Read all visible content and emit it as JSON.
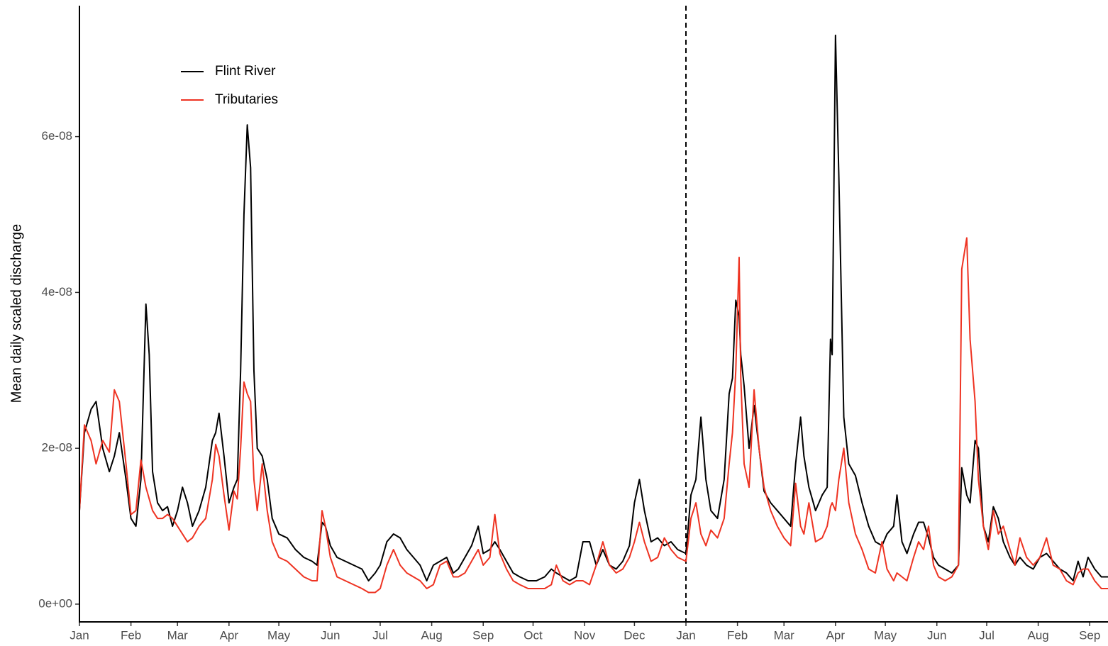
{
  "chart_data": {
    "type": "line",
    "y_label": "Mean daily scaled discharge",
    "legend": "top-left",
    "vline": 365,
    "xlim": [
      0,
      619
    ],
    "ylim": [
      -2.28e-09,
      7.68e-08
    ],
    "xticks": [
      {
        "value": 0,
        "label": "Jan"
      },
      {
        "value": 31,
        "label": "Feb"
      },
      {
        "value": 59,
        "label": "Mar"
      },
      {
        "value": 90,
        "label": "Apr"
      },
      {
        "value": 120,
        "label": "May"
      },
      {
        "value": 151,
        "label": "Jun"
      },
      {
        "value": 181,
        "label": "Jul"
      },
      {
        "value": 212,
        "label": "Aug"
      },
      {
        "value": 243,
        "label": "Sep"
      },
      {
        "value": 273,
        "label": "Oct"
      },
      {
        "value": 304,
        "label": "Nov"
      },
      {
        "value": 334,
        "label": "Dec"
      },
      {
        "value": 365,
        "label": "Jan"
      },
      {
        "value": 396,
        "label": "Feb"
      },
      {
        "value": 424,
        "label": "Mar"
      },
      {
        "value": 455,
        "label": "Apr"
      },
      {
        "value": 485,
        "label": "May"
      },
      {
        "value": 516,
        "label": "Jun"
      },
      {
        "value": 546,
        "label": "Jul"
      },
      {
        "value": 577,
        "label": "Aug"
      },
      {
        "value": 608,
        "label": "Sep"
      }
    ],
    "yticks": [
      {
        "value": 0,
        "label": "0e+00"
      },
      {
        "value": 2e-08,
        "label": "2e-08"
      },
      {
        "value": 4e-08,
        "label": "4e-08"
      },
      {
        "value": 6e-08,
        "label": "6e-08"
      }
    ],
    "x": [
      0,
      3,
      7,
      10,
      14,
      18,
      21,
      24,
      28,
      31,
      34,
      37,
      40,
      42,
      44,
      47,
      50,
      53,
      56,
      59,
      62,
      65,
      68,
      72,
      76,
      80,
      82,
      84,
      87,
      90,
      93,
      95,
      97,
      99,
      101,
      103,
      105,
      107,
      110,
      113,
      116,
      120,
      125,
      130,
      135,
      140,
      143,
      146,
      148,
      151,
      155,
      160,
      165,
      170,
      174,
      178,
      181,
      185,
      189,
      193,
      197,
      201,
      205,
      209,
      213,
      217,
      221,
      225,
      228,
      232,
      236,
      240,
      243,
      247,
      250,
      253,
      257,
      261,
      265,
      270,
      275,
      280,
      284,
      287,
      291,
      295,
      299,
      303,
      307,
      311,
      315,
      319,
      323,
      327,
      331,
      334,
      337,
      340,
      344,
      348,
      352,
      356,
      360,
      365,
      368,
      371,
      374,
      377,
      380,
      384,
      388,
      391,
      393,
      395,
      397,
      398,
      400,
      403,
      406,
      409,
      412,
      416,
      420,
      424,
      428,
      431,
      434,
      436,
      439,
      443,
      447,
      450,
      452,
      453,
      455,
      457,
      460,
      463,
      467,
      471,
      475,
      479,
      483,
      486,
      490,
      492,
      495,
      498,
      502,
      505,
      508,
      511,
      514,
      517,
      521,
      525,
      529,
      531,
      534,
      536,
      539,
      541,
      544,
      547,
      550,
      553,
      556,
      560,
      563,
      566,
      570,
      574,
      578,
      582,
      586,
      590,
      594,
      598,
      601,
      604,
      607,
      611,
      615,
      619
    ],
    "series": [
      {
        "name": "Flint River",
        "color": "#000000",
        "values": [
          1.2e-08,
          2.2e-08,
          2.5e-08,
          2.6e-08,
          2e-08,
          1.7e-08,
          1.9e-08,
          2.2e-08,
          1.6e-08,
          1.1e-08,
          1e-08,
          1.6e-08,
          3.85e-08,
          3.2e-08,
          1.7e-08,
          1.3e-08,
          1.2e-08,
          1.25e-08,
          1e-08,
          1.2e-08,
          1.5e-08,
          1.3e-08,
          1e-08,
          1.2e-08,
          1.5e-08,
          2.1e-08,
          2.2e-08,
          2.45e-08,
          1.9e-08,
          1.3e-08,
          1.5e-08,
          1.6e-08,
          3e-08,
          5e-08,
          6.15e-08,
          5.6e-08,
          3e-08,
          2e-08,
          1.9e-08,
          1.6e-08,
          1.1e-08,
          9e-09,
          8.5e-09,
          7e-09,
          6e-09,
          5.5e-09,
          5e-09,
          1.05e-08,
          1e-08,
          7.5e-09,
          6e-09,
          5.5e-09,
          5e-09,
          4.5e-09,
          3e-09,
          4e-09,
          5e-09,
          8e-09,
          9e-09,
          8.5e-09,
          7e-09,
          6e-09,
          5e-09,
          3e-09,
          5e-09,
          5.5e-09,
          6e-09,
          4e-09,
          4.5e-09,
          6e-09,
          7.5e-09,
          1e-08,
          6.5e-09,
          7e-09,
          8e-09,
          7e-09,
          5.5e-09,
          4e-09,
          3.5e-09,
          3e-09,
          3e-09,
          3.5e-09,
          4.5e-09,
          4e-09,
          3.5e-09,
          3e-09,
          3.5e-09,
          8e-09,
          8e-09,
          5e-09,
          7e-09,
          5e-09,
          4.5e-09,
          5.5e-09,
          7.5e-09,
          1.3e-08,
          1.6e-08,
          1.2e-08,
          8e-09,
          8.5e-09,
          7.5e-09,
          8e-09,
          7e-09,
          6.5e-09,
          1.4e-08,
          1.6e-08,
          2.4e-08,
          1.6e-08,
          1.2e-08,
          1.1e-08,
          1.6e-08,
          2.7e-08,
          2.9e-08,
          3.9e-08,
          3.7e-08,
          3.2e-08,
          2.8e-08,
          2e-08,
          2.55e-08,
          2e-08,
          1.45e-08,
          1.3e-08,
          1.2e-08,
          1.1e-08,
          1e-08,
          1.8e-08,
          2.4e-08,
          1.9e-08,
          1.5e-08,
          1.2e-08,
          1.4e-08,
          1.5e-08,
          3.4e-08,
          3.2e-08,
          7.3e-08,
          5.5e-08,
          2.4e-08,
          1.8e-08,
          1.65e-08,
          1.3e-08,
          1e-08,
          8e-09,
          7.5e-09,
          9e-09,
          1e-08,
          1.4e-08,
          8e-09,
          6.5e-09,
          9e-09,
          1.05e-08,
          1.05e-08,
          8.5e-09,
          6e-09,
          5e-09,
          4.5e-09,
          4e-09,
          5e-09,
          1.75e-08,
          1.4e-08,
          1.3e-08,
          2.1e-08,
          2e-08,
          1e-08,
          8e-09,
          1.25e-08,
          1.1e-08,
          8e-09,
          6e-09,
          5e-09,
          6e-09,
          5e-09,
          4.5e-09,
          6e-09,
          6.5e-09,
          5.5e-09,
          4.5e-09,
          4e-09,
          3e-09,
          5.5e-09,
          3.5e-09,
          6e-09,
          4.5e-09,
          3.5e-09,
          3.5e-09
        ]
      },
      {
        "name": "Tributaries",
        "color": "#ee3322",
        "values": [
          1.2e-08,
          2.3e-08,
          2.1e-08,
          1.8e-08,
          2.1e-08,
          1.95e-08,
          2.75e-08,
          2.6e-08,
          1.8e-08,
          1.15e-08,
          1.2e-08,
          1.85e-08,
          1.5e-08,
          1.35e-08,
          1.2e-08,
          1.1e-08,
          1.1e-08,
          1.15e-08,
          1.1e-08,
          1e-08,
          9e-09,
          8e-09,
          8.5e-09,
          1e-08,
          1.1e-08,
          1.6e-08,
          2.05e-08,
          1.9e-08,
          1.4e-08,
          9.5e-09,
          1.45e-08,
          1.35e-08,
          2e-08,
          2.85e-08,
          2.7e-08,
          2.6e-08,
          1.6e-08,
          1.2e-08,
          1.8e-08,
          1.2e-08,
          8e-09,
          6e-09,
          5.5e-09,
          4.5e-09,
          3.5e-09,
          3e-09,
          3e-09,
          1.2e-08,
          1e-08,
          6e-09,
          3.5e-09,
          3e-09,
          2.5e-09,
          2e-09,
          1.5e-09,
          1.5e-09,
          2e-09,
          5e-09,
          7e-09,
          5e-09,
          4e-09,
          3.5e-09,
          3e-09,
          2e-09,
          2.5e-09,
          5e-09,
          5.5e-09,
          3.5e-09,
          3.5e-09,
          4e-09,
          5.5e-09,
          7e-09,
          5e-09,
          6e-09,
          1.15e-08,
          6.5e-09,
          4.5e-09,
          3e-09,
          2.5e-09,
          2e-09,
          2e-09,
          2e-09,
          2.5e-09,
          5e-09,
          3e-09,
          2.5e-09,
          3e-09,
          3e-09,
          2.5e-09,
          5e-09,
          8e-09,
          5e-09,
          4e-09,
          4.5e-09,
          6e-09,
          8e-09,
          1.05e-08,
          8e-09,
          5.5e-09,
          6e-09,
          8.5e-09,
          7e-09,
          6e-09,
          5.5e-09,
          1.1e-08,
          1.3e-08,
          9e-09,
          7.5e-09,
          9.5e-09,
          8.5e-09,
          1.1e-08,
          1.8e-08,
          2.2e-08,
          3e-08,
          4.45e-08,
          2.9e-08,
          1.8e-08,
          1.5e-08,
          2.75e-08,
          2e-08,
          1.5e-08,
          1.2e-08,
          1e-08,
          8.5e-09,
          7.5e-09,
          1.55e-08,
          1e-08,
          9e-09,
          1.3e-08,
          8e-09,
          8.5e-09,
          1e-08,
          1.25e-08,
          1.3e-08,
          1.2e-08,
          1.6e-08,
          2e-08,
          1.3e-08,
          9e-09,
          7e-09,
          4.5e-09,
          4e-09,
          8e-09,
          4.5e-09,
          3e-09,
          4e-09,
          3.5e-09,
          3e-09,
          6e-09,
          8e-09,
          7e-09,
          1e-08,
          5e-09,
          3.5e-09,
          3e-09,
          3.5e-09,
          5e-09,
          4.3e-08,
          4.7e-08,
          3.4e-08,
          2.6e-08,
          1.6e-08,
          1e-08,
          7e-09,
          1.2e-08,
          9e-09,
          1e-08,
          7e-09,
          5e-09,
          8.5e-09,
          6e-09,
          5e-09,
          6e-09,
          8.5e-09,
          5e-09,
          4.5e-09,
          3e-09,
          2.5e-09,
          4e-09,
          4.5e-09,
          4.5e-09,
          3e-09,
          2e-09,
          2e-09
        ]
      }
    ]
  }
}
